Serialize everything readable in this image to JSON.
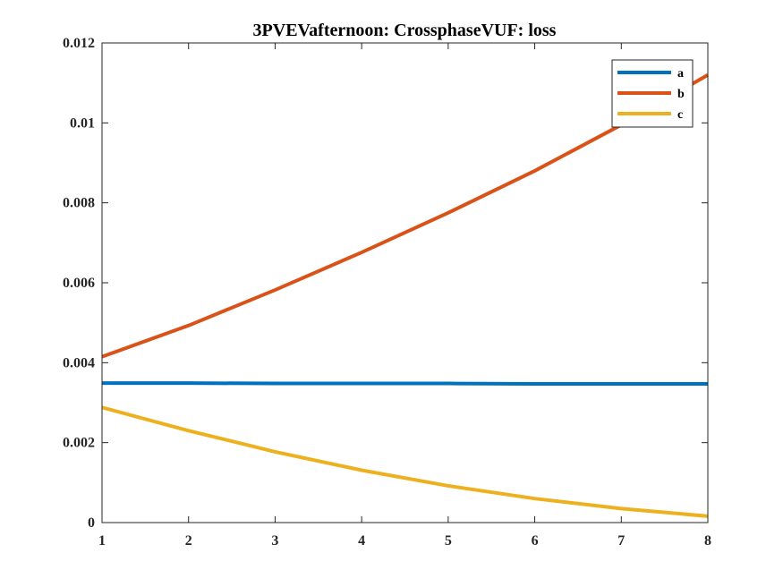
{
  "chart_data": {
    "type": "line",
    "title": "3PVEVafternoon: CrossphaseVUF: loss",
    "xlabel": "",
    "ylabel": "",
    "xlim": [
      1,
      8
    ],
    "ylim": [
      0,
      0.012
    ],
    "x": [
      1,
      2,
      3,
      4,
      5,
      6,
      7,
      8
    ],
    "x_ticks": [
      "1",
      "2",
      "3",
      "4",
      "5",
      "6",
      "7",
      "8"
    ],
    "y_ticks": [
      "0",
      "0.002",
      "0.004",
      "0.006",
      "0.008",
      "0.01",
      "0.012"
    ],
    "y_tick_values": [
      0,
      0.002,
      0.004,
      0.006,
      0.008,
      0.01,
      0.012
    ],
    "grid": false,
    "legend_position": "top-right",
    "series": [
      {
        "name": "a",
        "color": "#0072BD",
        "values": [
          0.00349,
          0.00349,
          0.00348,
          0.00348,
          0.00348,
          0.00347,
          0.00347,
          0.00347
        ]
      },
      {
        "name": "b",
        "color": "#D95319",
        "values": [
          0.00415,
          0.00493,
          0.00582,
          0.00676,
          0.00775,
          0.0088,
          0.00995,
          0.0112
        ]
      },
      {
        "name": "c",
        "color": "#EDB120",
        "values": [
          0.00288,
          0.0023,
          0.00177,
          0.00131,
          0.00092,
          0.0006,
          0.00035,
          0.00016
        ]
      }
    ]
  }
}
